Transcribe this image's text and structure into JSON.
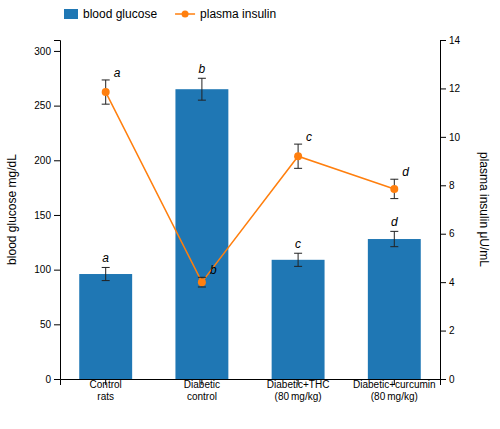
{
  "chart_data": {
    "type": "bar",
    "categories": [
      "Control\nrats",
      "Diabetic\ncontrol",
      "Diabetic+THC\n(80 mg/kg)",
      "Diabetic+curcumin\n(80 mg/kg)"
    ],
    "ylabel": "blood glucose mg/dL",
    "y2label": "plasma insulin μU/mL",
    "ylim": [
      0,
      310
    ],
    "yticks": [
      0,
      50,
      100,
      150,
      200,
      250,
      300
    ],
    "y2lim": [
      0,
      14
    ],
    "y2ticks": [
      0,
      2,
      4,
      6,
      8,
      10,
      12,
      14
    ],
    "grid": false,
    "legend": "upper left",
    "series": [
      {
        "name": "blood glucose",
        "type": "bar",
        "values": [
          96,
          265,
          109,
          128
        ],
        "errors": [
          6,
          10,
          6,
          7
        ],
        "annotations": [
          "a",
          "b",
          "c",
          "d"
        ]
      },
      {
        "name": "plasma insulin",
        "type": "line",
        "axis": "y2",
        "marker": "circle",
        "values": [
          11.85,
          4.0,
          9.2,
          7.85
        ],
        "errors": [
          0.5,
          0.2,
          0.5,
          0.4
        ],
        "annotations": [
          "a",
          "b",
          "c",
          "d"
        ]
      }
    ]
  }
}
